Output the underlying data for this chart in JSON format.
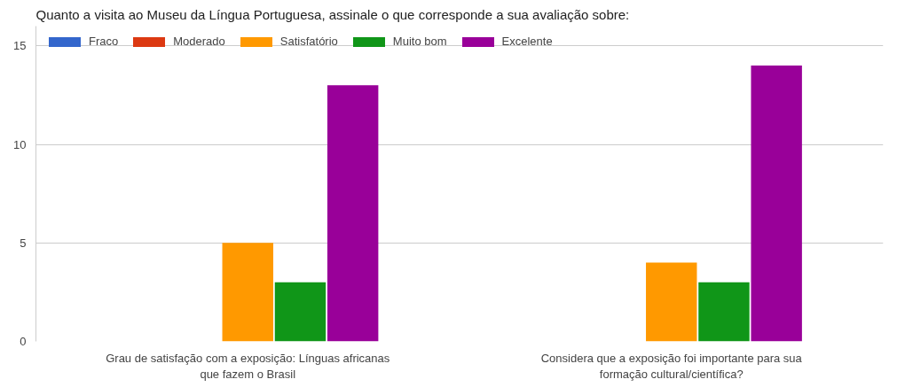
{
  "chart_data": {
    "type": "bar",
    "title": "Quanto a visita ao Museu da Língua Portuguesa, assinale o que corresponde a sua avaliação sobre:",
    "categories": [
      "Grau de satisfação com a exposição: Línguas africanas que fazem o Brasil",
      "Considera que a exposição foi importante para sua formação cultural/científica?"
    ],
    "series": [
      {
        "name": "Fraco",
        "color": "#3366cc",
        "values": [
          0,
          0
        ]
      },
      {
        "name": "Moderado",
        "color": "#dc3912",
        "values": [
          0,
          0
        ]
      },
      {
        "name": "Satisfatório",
        "color": "#ff9900",
        "values": [
          5,
          4
        ]
      },
      {
        "name": "Muito bom",
        "color": "#109618",
        "values": [
          3,
          3
        ]
      },
      {
        "name": "Excelente",
        "color": "#990099",
        "values": [
          13,
          14
        ]
      }
    ],
    "ylim": [
      0,
      16
    ],
    "yticks": [
      0,
      5,
      10,
      15
    ],
    "grid": "y",
    "legend": "top left"
  }
}
